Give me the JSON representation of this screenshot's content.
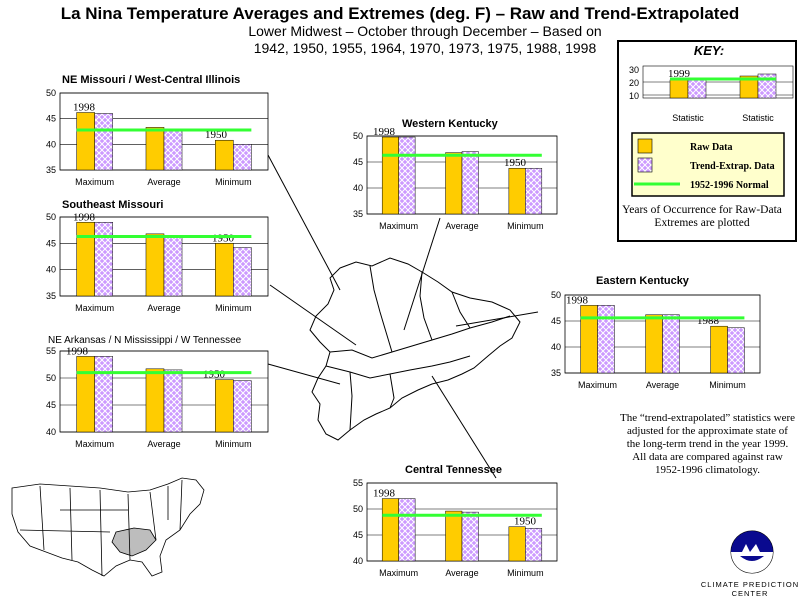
{
  "header": {
    "title": "La Nina Temperature Averages and Extremes (deg.  F) – Raw and Trend-Extrapolated",
    "subtitle_line1": "Lower Midwest – October through December –  Based on",
    "subtitle_line2": "1942, 1950, 1955, 1964, 1970, 1973, 1975, 1988, 1998"
  },
  "key": {
    "heading": "KEY:",
    "example_year": "1999",
    "example_yticks": [
      "30",
      "20",
      "10"
    ],
    "example_categories": [
      "Statistic",
      "Statistic"
    ],
    "raw_label": "Raw Data",
    "trend_label": "Trend-Extrap. Data",
    "normal_label": "1952-1996 Normal",
    "note": "Years of Occurrence for Raw-Data Extremes are plotted"
  },
  "note": "The “trend-extrapolated” statistics were adjusted for the approximate state of the long-term trend in the year 1999.  All data are compared against raw 1952-1996 climatology.",
  "logo_text": "CLIMATE PREDICTION CENTER",
  "colors": {
    "raw": "#ffcc00",
    "trend": "#cc99ff",
    "normal": "#33ff33"
  },
  "chart_data": [
    {
      "type": "bar",
      "title": "NE Missouri / West-Central Illinois",
      "categories": [
        "Maximum",
        "Average",
        "Minimum"
      ],
      "ylim": [
        35,
        50
      ],
      "yticks": [
        35,
        40,
        45,
        50
      ],
      "series": [
        {
          "name": "Raw Data",
          "values": [
            46.2,
            43.3,
            40.8
          ]
        },
        {
          "name": "Trend-Extrap. Data",
          "values": [
            46.0,
            43.0,
            40.0
          ]
        }
      ],
      "normal": 42.8,
      "year_labels": [
        "1998",
        "",
        "1950"
      ]
    },
    {
      "type": "bar",
      "title": "Western Kentucky",
      "categories": [
        "Maximum",
        "Average",
        "Minimum"
      ],
      "ylim": [
        35,
        50
      ],
      "yticks": [
        35,
        40,
        45,
        50
      ],
      "series": [
        {
          "name": "Raw Data",
          "values": [
            49.8,
            46.8,
            43.8
          ]
        },
        {
          "name": "Trend-Extrap. Data",
          "values": [
            49.8,
            47.0,
            43.8
          ]
        }
      ],
      "normal": 46.3,
      "year_labels": [
        "1998",
        "",
        "1950"
      ]
    },
    {
      "type": "bar",
      "title": "Southeast Missouri",
      "categories": [
        "Maximum",
        "Average",
        "Minimum"
      ],
      "ylim": [
        35,
        50
      ],
      "yticks": [
        35,
        40,
        45,
        50
      ],
      "series": [
        {
          "name": "Raw Data",
          "values": [
            49.0,
            46.8,
            45.0
          ]
        },
        {
          "name": "Trend-Extrap. Data",
          "values": [
            49.0,
            46.3,
            44.2
          ]
        }
      ],
      "normal": 46.3,
      "year_labels": [
        "1998",
        "",
        "1950"
      ]
    },
    {
      "type": "bar",
      "title": "Eastern Kentucky",
      "categories": [
        "Maximum",
        "Average",
        "Minimum"
      ],
      "ylim": [
        35,
        50
      ],
      "yticks": [
        35,
        40,
        45,
        50
      ],
      "series": [
        {
          "name": "Raw Data",
          "values": [
            48.0,
            46.2,
            44.0
          ]
        },
        {
          "name": "Trend-Extrap. Data",
          "values": [
            48.0,
            46.2,
            43.7
          ]
        }
      ],
      "normal": 45.6,
      "year_labels": [
        "1998",
        "",
        "1988"
      ]
    },
    {
      "type": "bar",
      "title": "NE Arkansas / N Mississippi / W Tennessee",
      "categories": [
        "Maximum",
        "Average",
        "Minimum"
      ],
      "ylim": [
        40,
        55
      ],
      "yticks": [
        40,
        45,
        50,
        55
      ],
      "series": [
        {
          "name": "Raw Data",
          "values": [
            54.0,
            51.7,
            49.7
          ]
        },
        {
          "name": "Trend-Extrap. Data",
          "values": [
            54.0,
            51.5,
            49.5
          ]
        }
      ],
      "normal": 51.0,
      "year_labels": [
        "1998",
        "",
        "1950"
      ]
    },
    {
      "type": "bar",
      "title": "Central Tennessee",
      "categories": [
        "Maximum",
        "Average",
        "Minimum"
      ],
      "ylim": [
        40,
        55
      ],
      "yticks": [
        40,
        45,
        50,
        55
      ],
      "series": [
        {
          "name": "Raw Data",
          "values": [
            52.0,
            49.6,
            46.6
          ]
        },
        {
          "name": "Trend-Extrap. Data",
          "values": [
            52.0,
            49.4,
            46.3
          ]
        }
      ],
      "normal": 48.8,
      "year_labels": [
        "1998",
        "",
        "1950"
      ]
    }
  ]
}
